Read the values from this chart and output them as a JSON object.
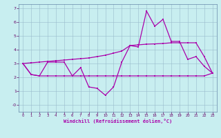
{
  "xlabel": "Windchill (Refroidissement éolien,°C)",
  "bg_color": "#c8eef0",
  "line_color": "#aa00aa",
  "grid_color": "#99bbcc",
  "x_hours": [
    0,
    1,
    2,
    3,
    4,
    5,
    6,
    7,
    8,
    9,
    10,
    11,
    12,
    13,
    14,
    15,
    16,
    17,
    18,
    19,
    20,
    21,
    22,
    23
  ],
  "line1_y": [
    3.0,
    2.2,
    2.1,
    3.1,
    3.1,
    3.1,
    2.1,
    2.7,
    1.3,
    1.2,
    0.7,
    1.3,
    3.1,
    4.3,
    4.2,
    6.8,
    5.7,
    6.2,
    4.6,
    4.6,
    3.3,
    3.5,
    2.8,
    2.3
  ],
  "line2_y": [
    3.0,
    3.05,
    3.1,
    3.15,
    3.2,
    3.25,
    3.3,
    3.35,
    3.4,
    3.5,
    3.6,
    3.75,
    3.9,
    4.3,
    4.35,
    4.4,
    4.42,
    4.45,
    4.5,
    4.5,
    4.5,
    4.5,
    3.5,
    2.3
  ],
  "line3_y": [
    3.0,
    2.2,
    2.1,
    2.1,
    2.1,
    2.1,
    2.1,
    2.1,
    2.1,
    2.1,
    2.1,
    2.1,
    2.1,
    2.1,
    2.1,
    2.1,
    2.1,
    2.1,
    2.1,
    2.1,
    2.1,
    2.1,
    2.1,
    2.3
  ],
  "ylim": [
    -0.5,
    7.3
  ],
  "xlim": [
    -0.5,
    23.5
  ],
  "yticks": [
    0,
    1,
    2,
    3,
    4,
    5,
    6,
    7
  ],
  "ytick_labels": [
    "-0",
    "1",
    "2",
    "3",
    "4",
    "5",
    "6",
    "7"
  ],
  "xticks": [
    0,
    1,
    2,
    3,
    4,
    5,
    6,
    7,
    8,
    9,
    10,
    11,
    12,
    13,
    14,
    15,
    16,
    17,
    18,
    19,
    20,
    21,
    22,
    23
  ]
}
